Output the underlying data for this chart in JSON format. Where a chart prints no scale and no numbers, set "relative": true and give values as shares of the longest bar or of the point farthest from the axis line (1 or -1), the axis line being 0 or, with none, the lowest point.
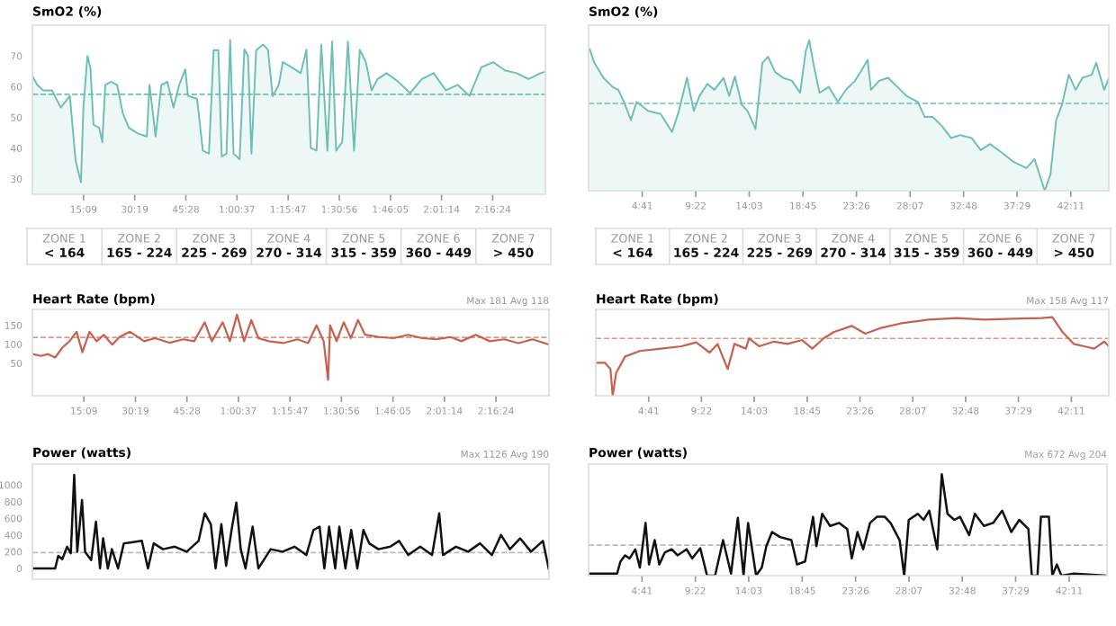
{
  "chart_data": [
    {
      "type": "area",
      "title": "SmO2 (%)",
      "xlim": [
        0,
        152
      ],
      "ylim": [
        25,
        80
      ],
      "yticks": [
        30,
        40,
        50,
        60,
        70
      ],
      "xticks": [
        {
          "value": 15.15,
          "label": "15:09"
        },
        {
          "value": 30.317,
          "label": "30:19"
        },
        {
          "value": 45.467,
          "label": "45:28"
        },
        {
          "value": 60.617,
          "label": "1:00:37"
        },
        {
          "value": 75.783,
          "label": "1:15:47"
        },
        {
          "value": 90.933,
          "label": "1:30:56"
        },
        {
          "value": 106.083,
          "label": "1:46:05"
        },
        {
          "value": 121.233,
          "label": "2:01:14"
        },
        {
          "value": 136.4,
          "label": "2:16:24"
        }
      ],
      "ref_lines": [
        {
          "axis": "y",
          "value": 57.5,
          "color": "#6dbfb3",
          "line_style": "dashed"
        }
      ],
      "series": [
        {
          "color": "#6dbfb3",
          "x": [
            0,
            1.4,
            3.2,
            5.8,
            8.4,
            11.1,
            12.8,
            14.4,
            15.1,
            16.3,
            17.2,
            18.1,
            19.8,
            20.7,
            21.6,
            23.3,
            25.1,
            26.8,
            28.6,
            31.2,
            33.9,
            34.7,
            36.5,
            38.2,
            40,
            41.8,
            43.5,
            45.3,
            46.1,
            48.8,
            50.5,
            52.3,
            53.7,
            55.1,
            56.1,
            57.5,
            58.6,
            59.6,
            61.4,
            62.8,
            63.9,
            64.9,
            66.3,
            68.4,
            69.8,
            71.2,
            73,
            74.2,
            76.8,
            79.5,
            81.2,
            82.5,
            84.2,
            85.6,
            87.4,
            88.8,
            90,
            91.8,
            93.5,
            95.3,
            97,
            98.8,
            100.5,
            102.3,
            104.9,
            108.4,
            111.9,
            115.4,
            118.9,
            122.5,
            126,
            129.5,
            133,
            136.5,
            140,
            143.5,
            147,
            150.5,
            151.9
          ],
          "values": [
            63.5,
            60.6,
            58.8,
            58.8,
            53.2,
            57,
            36,
            28.9,
            53,
            70,
            66,
            47.6,
            46.6,
            42,
            60.6,
            61.6,
            60.6,
            51.3,
            46.6,
            44.8,
            43.8,
            60.6,
            43.8,
            60.6,
            61.6,
            53.2,
            60.6,
            65.6,
            57,
            56,
            39.2,
            38.2,
            71.9,
            71.9,
            37.3,
            38.2,
            75.2,
            38.2,
            36.4,
            72.2,
            70,
            38.2,
            71.9,
            73.7,
            72,
            56.9,
            60.6,
            68,
            66.3,
            64.4,
            72,
            40,
            39.2,
            73.7,
            39.2,
            74.7,
            39.2,
            42,
            74.7,
            39.2,
            72,
            68,
            58.8,
            62.5,
            64.4,
            61.6,
            57.9,
            62.5,
            64.4,
            58.8,
            60.6,
            57,
            66.3,
            68,
            65.3,
            64.4,
            62.5,
            64.4,
            64.8
          ]
        }
      ]
    },
    {
      "type": "area",
      "title": "SmO2 (%)",
      "relative": true,
      "tick_labels": "x",
      "xlim": [
        0,
        45.5
      ],
      "xticks": [
        {
          "value": 4.69,
          "label": "4:41"
        },
        {
          "value": 9.37,
          "label": "9:22"
        },
        {
          "value": 14.05,
          "label": "14:03"
        },
        {
          "value": 18.75,
          "label": "18:45"
        },
        {
          "value": 23.43,
          "label": "23:26"
        },
        {
          "value": 28.12,
          "label": "28:07"
        },
        {
          "value": 32.8,
          "label": "32:48"
        },
        {
          "value": 37.48,
          "label": "37:29"
        },
        {
          "value": 42.18,
          "label": "42:11"
        }
      ],
      "ref_lines": [
        {
          "axis": "y",
          "value": 0.58,
          "color": "#6dbfb3",
          "line_style": "dashed"
        }
      ],
      "series": [
        {
          "color": "#6dbfb3",
          "x": [
            0.1,
            0.5,
            1.3,
            2.1,
            2.6,
            3.1,
            3.7,
            4.2,
            5.2,
            6.3,
            7.3,
            7.9,
            8.6,
            9.2,
            9.7,
            10.4,
            11,
            11.8,
            12.3,
            12.8,
            13.4,
            13.9,
            14.6,
            15.2,
            15.7,
            16.3,
            17,
            17.8,
            18.5,
            19,
            19.3,
            19.7,
            20.2,
            21,
            21.8,
            22.5,
            23.3,
            23.8,
            24.4,
            24.7,
            25.4,
            26.2,
            27,
            27.8,
            28.8,
            29.4,
            30.1,
            30.9,
            31.7,
            32.5,
            33.5,
            34.3,
            35.1,
            36.2,
            37.2,
            38.3,
            39,
            39.6,
            39.9,
            40.4,
            40.9,
            41.4,
            42,
            42.6,
            43.2,
            44,
            44.4,
            45.1,
            45.5
          ],
          "values": [
            0.94,
            0.85,
            0.75,
            0.69,
            0.67,
            0.59,
            0.47,
            0.59,
            0.53,
            0.51,
            0.39,
            0.53,
            0.75,
            0.53,
            0.63,
            0.71,
            0.67,
            0.75,
            0.63,
            0.76,
            0.57,
            0.53,
            0.41,
            0.85,
            0.89,
            0.79,
            0.75,
            0.73,
            0.65,
            0.93,
            1.0,
            0.83,
            0.65,
            0.69,
            0.59,
            0.67,
            0.73,
            0.79,
            0.87,
            0.67,
            0.73,
            0.75,
            0.69,
            0.63,
            0.59,
            0.49,
            0.49,
            0.43,
            0.35,
            0.37,
            0.35,
            0.27,
            0.31,
            0.25,
            0.19,
            0.15,
            0.21,
            0.07,
            0,
            0.11,
            0.47,
            0.57,
            0.77,
            0.67,
            0.75,
            0.77,
            0.85,
            0.67,
            0.75
          ]
        }
      ]
    },
    {
      "type": "other",
      "annotations": [
        "ZONE 1",
        "< 164",
        "ZONE 2",
        "165 - 224",
        "ZONE 3",
        "225 - 269",
        "ZONE 4",
        "270 - 314",
        "ZONE 5",
        "315 - 359",
        "ZONE 6",
        "360 - 449",
        "ZONE 7",
        "> 450"
      ]
    },
    {
      "type": "other",
      "annotations": [
        "ZONE 1",
        "< 164",
        "ZONE 2",
        "165 - 224",
        "ZONE 3",
        "225 - 269",
        "ZONE 4",
        "270 - 314",
        "ZONE 5",
        "315 - 359",
        "ZONE 6",
        "360 - 449",
        "ZONE 7",
        "> 450"
      ]
    },
    {
      "type": "line",
      "title": "Heart Rate (bpm)",
      "annotations": [
        "Max 181 Avg 118"
      ],
      "xlim": [
        0,
        152
      ],
      "ylim": [
        -36,
        192
      ],
      "yticks": [
        50,
        100,
        150
      ],
      "xticks": [
        {
          "value": 15.15,
          "label": "15:09"
        },
        {
          "value": 30.317,
          "label": "30:19"
        },
        {
          "value": 45.467,
          "label": "45:28"
        },
        {
          "value": 60.617,
          "label": "1:00:37"
        },
        {
          "value": 75.783,
          "label": "1:15:47"
        },
        {
          "value": 90.933,
          "label": "1:30:56"
        },
        {
          "value": 106.083,
          "label": "1:46:05"
        },
        {
          "value": 121.233,
          "label": "2:01:14"
        },
        {
          "value": 136.4,
          "label": "2:16:24"
        }
      ],
      "ref_lines": [
        {
          "axis": "y",
          "value": 118,
          "color": "#d99a8c",
          "line_style": "dashed"
        }
      ],
      "series": [
        {
          "color": "#c8604e",
          "x": [
            0,
            2.5,
            4.6,
            6.7,
            8.8,
            10.9,
            13,
            14.7,
            16.8,
            18.9,
            21,
            23.5,
            25.6,
            28.7,
            32.9,
            36.1,
            40.3,
            44.4,
            47.6,
            50.7,
            52.8,
            56,
            58.1,
            60.2,
            62.3,
            64.4,
            66.5,
            69.6,
            73.8,
            78,
            81.1,
            83.6,
            85.7,
            87,
            87.6,
            89.5,
            91.6,
            93.7,
            95.8,
            97.9,
            102.1,
            106.3,
            110.5,
            114.7,
            118.9,
            123.1,
            126.2,
            130.4,
            134.6,
            138.8,
            143,
            147.2,
            152
          ],
          "values": [
            74,
            69,
            74,
            65,
            91,
            108,
            133,
            79,
            133,
            108,
            125,
            99,
            119,
            133,
            108,
            116,
            104,
            113,
            108,
            158,
            108,
            158,
            108,
            178,
            108,
            164,
            116,
            108,
            103,
            113,
            103,
            150,
            108,
            6,
            150,
            108,
            158,
            116,
            164,
            125,
            119,
            116,
            125,
            116,
            113,
            119,
            108,
            125,
            108,
            113,
            103,
            113,
            99
          ]
        }
      ]
    },
    {
      "type": "line",
      "title": "Heart Rate (bpm)",
      "annotations": [
        "Max 158 Avg 117"
      ],
      "relative": true,
      "tick_labels": "x",
      "xlim": [
        0,
        45.5
      ],
      "xticks": [
        {
          "value": 4.69,
          "label": "4:41"
        },
        {
          "value": 9.37,
          "label": "9:22"
        },
        {
          "value": 14.05,
          "label": "14:03"
        },
        {
          "value": 18.75,
          "label": "18:45"
        },
        {
          "value": 23.43,
          "label": "23:26"
        },
        {
          "value": 28.12,
          "label": "28:07"
        },
        {
          "value": 32.8,
          "label": "32:48"
        },
        {
          "value": 37.48,
          "label": "37:29"
        },
        {
          "value": 42.18,
          "label": "42:11"
        }
      ],
      "ref_lines": [
        {
          "axis": "y",
          "value": 0.73,
          "color": "#d99a8c",
          "line_style": "dashed"
        }
      ],
      "series": [
        {
          "color": "#c8604e",
          "x": [
            0,
            0.8,
            1.3,
            1.5,
            1.8,
            2.6,
            3.9,
            5.8,
            7.6,
            8.9,
            10.1,
            10.8,
            11.7,
            12.3,
            13.3,
            13.6,
            14.5,
            15.8,
            17,
            18.3,
            19.2,
            20.2,
            21.1,
            22.7,
            23.9,
            25.2,
            27,
            29.5,
            32,
            34.5,
            37,
            39.5,
            40.5,
            41.4,
            42.4,
            43.3,
            44.2,
            45.1,
            45.5
          ],
          "values": [
            0.42,
            0.42,
            0.34,
            0,
            0.29,
            0.5,
            0.57,
            0.6,
            0.63,
            0.68,
            0.55,
            0.66,
            0.34,
            0.66,
            0.6,
            0.73,
            0.63,
            0.69,
            0.66,
            0.71,
            0.6,
            0.73,
            0.81,
            0.89,
            0.79,
            0.86,
            0.92,
            0.97,
            0.99,
            0.97,
            0.98,
            0.99,
            1.0,
            0.81,
            0.66,
            0.63,
            0.6,
            0.69,
            0.63
          ]
        }
      ]
    },
    {
      "type": "line",
      "title": "Power (watts)",
      "annotations": [
        "Max 1126 Avg 190"
      ],
      "tick_labels": "y",
      "xlim": [
        0,
        152
      ],
      "ylim": [
        -130,
        1250
      ],
      "yticks": [
        0,
        200,
        400,
        600,
        800,
        1000
      ],
      "ref_lines": [
        {
          "axis": "y",
          "value": 190,
          "color": "#bbbbbb",
          "line_style": "dashed"
        }
      ],
      "series": [
        {
          "color": "#111111",
          "x": [
            0,
            6.7,
            7.6,
            8.8,
            10.2,
            11.3,
            12.3,
            13.2,
            14.6,
            15.5,
            17.3,
            18.7,
            19.9,
            20.8,
            22.2,
            23.4,
            25.2,
            26.9,
            28.7,
            32.2,
            34,
            35.7,
            38.4,
            41.9,
            45.4,
            48.9,
            50.7,
            52.5,
            53.9,
            55.6,
            57,
            58.6,
            60,
            61.3,
            62.7,
            64.8,
            66.5,
            70.1,
            73.6,
            77.1,
            80.6,
            82.7,
            84.5,
            85.9,
            87.3,
            89.1,
            90.3,
            92.1,
            93.8,
            95.6,
            97.4,
            99.1,
            101.8,
            105.3,
            107.9,
            110.6,
            114.1,
            117.6,
            119.7,
            120.8,
            124.6,
            128.2,
            131.7,
            135.2,
            137.9,
            140.5,
            143.5,
            146.7,
            150.2,
            151.9
          ],
          "values": [
            0,
            0,
            150,
            110,
            260,
            180,
            1120,
            200,
            820,
            200,
            100,
            560,
            0,
            360,
            0,
            230,
            0,
            300,
            310,
            330,
            0,
            300,
            230,
            260,
            200,
            330,
            660,
            530,
            0,
            530,
            30,
            460,
            790,
            230,
            0,
            500,
            0,
            230,
            200,
            260,
            160,
            460,
            500,
            0,
            500,
            0,
            500,
            0,
            460,
            0,
            460,
            300,
            230,
            260,
            330,
            160,
            260,
            160,
            660,
            160,
            260,
            200,
            300,
            160,
            400,
            230,
            360,
            200,
            330,
            0
          ]
        }
      ]
    },
    {
      "type": "line",
      "title": "Power (watts)",
      "annotations": [
        "Max 672 Avg 204"
      ],
      "relative": true,
      "tick_labels": "x",
      "xlim": [
        0,
        45.5
      ],
      "xticks": [
        {
          "value": 4.69,
          "label": "4:41"
        },
        {
          "value": 9.37,
          "label": "9:22"
        },
        {
          "value": 14.05,
          "label": "14:03"
        },
        {
          "value": 18.75,
          "label": "18:45"
        },
        {
          "value": 23.43,
          "label": "23:26"
        },
        {
          "value": 28.12,
          "label": "28:07"
        },
        {
          "value": 32.8,
          "label": "32:48"
        },
        {
          "value": 37.48,
          "label": "37:29"
        },
        {
          "value": 42.18,
          "label": "42:11"
        }
      ],
      "ref_lines": [
        {
          "axis": "y",
          "value": 0.3,
          "color": "#bbbbbb",
          "line_style": "dashed"
        }
      ],
      "series": [
        {
          "color": "#111111",
          "x": [
            0,
            2.5,
            2.8,
            3.2,
            3.6,
            4.1,
            4.5,
            5,
            5.3,
            5.8,
            6.2,
            6.7,
            7.3,
            7.8,
            8.6,
            9.1,
            9.8,
            10.4,
            11.1,
            11.8,
            12.5,
            13.1,
            13.6,
            14,
            14.7,
            15.2,
            15.6,
            16.1,
            16.8,
            17.8,
            18.3,
            19,
            19.7,
            20,
            20.5,
            21.2,
            22,
            22.7,
            23.1,
            23.6,
            24.1,
            24.7,
            25.3,
            26,
            26.5,
            27.3,
            27.7,
            28.1,
            28.9,
            29.4,
            29.9,
            30.6,
            31,
            31.5,
            32.1,
            32.6,
            33.4,
            33.9,
            34.7,
            35.5,
            36.3,
            37.1,
            37.8,
            38.6,
            38.9,
            39.4,
            39.7,
            40.4,
            40.7,
            41.1,
            41.5,
            42.6,
            45.5
          ],
          "values": [
            0.02,
            0.02,
            0.14,
            0.2,
            0.17,
            0.26,
            0.08,
            0.52,
            0.11,
            0.35,
            0.11,
            0.23,
            0.26,
            0.2,
            0.26,
            0.17,
            0.27,
            0,
            0,
            0.35,
            0.02,
            0.57,
            0,
            0.52,
            0,
            0.08,
            0.29,
            0.43,
            0.38,
            0.35,
            0.11,
            0.14,
            0.58,
            0.29,
            0.61,
            0.49,
            0.52,
            0.46,
            0.17,
            0.43,
            0.26,
            0.52,
            0.58,
            0.58,
            0.52,
            0.35,
            0,
            0.55,
            0.61,
            0.55,
            0.64,
            0.26,
            1.0,
            0.61,
            0.55,
            0.58,
            0.4,
            0.61,
            0.49,
            0.52,
            0.64,
            0.43,
            0.55,
            0.46,
            0,
            0,
            0.58,
            0.58,
            0,
            0.11,
            0,
            0.02,
            0
          ]
        }
      ]
    }
  ]
}
